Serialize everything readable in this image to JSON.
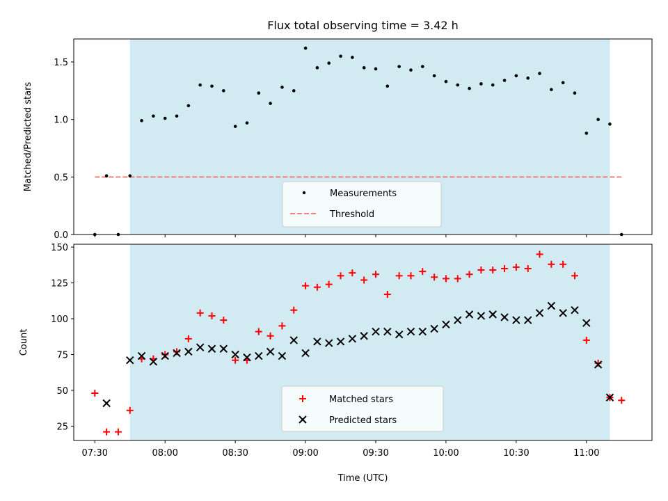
{
  "chart_data": [
    {
      "type": "scatter",
      "title": "Flux total observing time = 3.42 h",
      "ylabel": "Matched/Predicted stars",
      "xlabel": "",
      "ylim": [
        0,
        1.7
      ],
      "yticks": [
        0.0,
        0.5,
        1.0,
        1.5
      ],
      "ytick_labels": [
        "0.0",
        "0.5",
        "1.0",
        "1.5"
      ],
      "shaded_region": [
        "07:45",
        "11:10"
      ],
      "threshold": {
        "name": "Threshold",
        "value": 0.5,
        "x_range": [
          "07:30",
          "11:15"
        ],
        "color": "#f08080"
      },
      "legend": {
        "placement": "lower center",
        "entries": [
          "Measurements",
          "Threshold"
        ]
      },
      "series": [
        {
          "name": "Measurements",
          "color": "#000000",
          "marker": "dot",
          "x": [
            "07:30",
            "07:35",
            "07:40",
            "07:45",
            "07:50",
            "07:55",
            "08:00",
            "08:05",
            "08:10",
            "08:15",
            "08:20",
            "08:25",
            "08:30",
            "08:35",
            "08:40",
            "08:45",
            "08:50",
            "08:55",
            "09:00",
            "09:05",
            "09:10",
            "09:15",
            "09:20",
            "09:25",
            "09:30",
            "09:35",
            "09:40",
            "09:45",
            "09:50",
            "09:55",
            "10:00",
            "10:05",
            "10:10",
            "10:15",
            "10:20",
            "10:25",
            "10:30",
            "10:35",
            "10:40",
            "10:45",
            "10:50",
            "10:55",
            "11:00",
            "11:05",
            "11:10",
            "11:15"
          ],
          "y": [
            0.0,
            0.51,
            0.0,
            0.51,
            0.99,
            1.03,
            1.01,
            1.03,
            1.12,
            1.3,
            1.29,
            1.25,
            0.94,
            0.97,
            1.23,
            1.14,
            1.28,
            1.25,
            1.62,
            1.45,
            1.49,
            1.55,
            1.54,
            1.45,
            1.44,
            1.29,
            1.46,
            1.43,
            1.46,
            1.38,
            1.33,
            1.3,
            1.27,
            1.31,
            1.3,
            1.34,
            1.38,
            1.36,
            1.4,
            1.26,
            1.32,
            1.23,
            0.88,
            1.0,
            0.96,
            0.0
          ]
        }
      ]
    },
    {
      "type": "scatter",
      "title": "",
      "xlabel": "Time (UTC)",
      "ylabel": "Count",
      "xlim": [
        "07:21",
        "11:28"
      ],
      "ylim": [
        15,
        152
      ],
      "yticks": [
        25,
        50,
        75,
        100,
        125,
        150
      ],
      "xtick_labels": [
        "07:30",
        "08:00",
        "08:30",
        "09:00",
        "09:30",
        "10:00",
        "10:30",
        "11:00"
      ],
      "shaded_region": [
        "07:45",
        "11:10"
      ],
      "legend": {
        "placement": "lower center",
        "entries": [
          "Matched stars",
          "Predicted stars"
        ]
      },
      "series": [
        {
          "name": "Matched stars",
          "color": "#ff0000",
          "marker": "plus",
          "x": [
            "07:30",
            "07:35",
            "07:40",
            "07:45",
            "07:50",
            "07:55",
            "08:00",
            "08:05",
            "08:10",
            "08:15",
            "08:20",
            "08:25",
            "08:30",
            "08:35",
            "08:40",
            "08:45",
            "08:50",
            "08:55",
            "09:00",
            "09:05",
            "09:10",
            "09:15",
            "09:20",
            "09:25",
            "09:30",
            "09:35",
            "09:40",
            "09:45",
            "09:50",
            "09:55",
            "10:00",
            "10:05",
            "10:10",
            "10:15",
            "10:20",
            "10:25",
            "10:30",
            "10:35",
            "10:40",
            "10:45",
            "10:50",
            "10:55",
            "11:00",
            "11:05",
            "11:10",
            "11:15"
          ],
          "y": [
            48,
            21,
            21,
            36,
            72,
            72,
            75,
            77,
            86,
            104,
            102,
            99,
            71,
            71,
            91,
            88,
            95,
            106,
            123,
            122,
            124,
            130,
            132,
            127,
            131,
            117,
            130,
            130,
            133,
            129,
            128,
            128,
            131,
            134,
            134,
            135,
            136,
            135,
            145,
            138,
            138,
            130,
            85,
            69,
            45,
            43
          ]
        },
        {
          "name": "Predicted stars",
          "color": "#000000",
          "marker": "x",
          "x": [
            "07:35",
            "07:45",
            "07:50",
            "07:55",
            "08:00",
            "08:05",
            "08:10",
            "08:15",
            "08:20",
            "08:25",
            "08:30",
            "08:35",
            "08:40",
            "08:45",
            "08:50",
            "08:55",
            "09:00",
            "09:05",
            "09:10",
            "09:15",
            "09:20",
            "09:25",
            "09:30",
            "09:35",
            "09:40",
            "09:45",
            "09:50",
            "09:55",
            "10:00",
            "10:05",
            "10:10",
            "10:15",
            "10:20",
            "10:25",
            "10:30",
            "10:35",
            "10:40",
            "10:45",
            "10:50",
            "10:55",
            "11:00",
            "11:05",
            "11:10"
          ],
          "y": [
            41,
            71,
            74,
            70,
            74,
            76,
            77,
            80,
            79,
            79,
            75,
            73,
            74,
            77,
            74,
            85,
            76,
            84,
            83,
            84,
            86,
            88,
            91,
            91,
            89,
            91,
            91,
            93,
            96,
            99,
            103,
            102,
            103,
            101,
            99,
            99,
            104,
            109,
            104,
            106,
            97,
            68,
            45
          ]
        }
      ]
    }
  ],
  "colors": {
    "shade": "#add8e6",
    "threshold": "#f08080",
    "matched": "#ff0000",
    "predicted": "#000000"
  }
}
